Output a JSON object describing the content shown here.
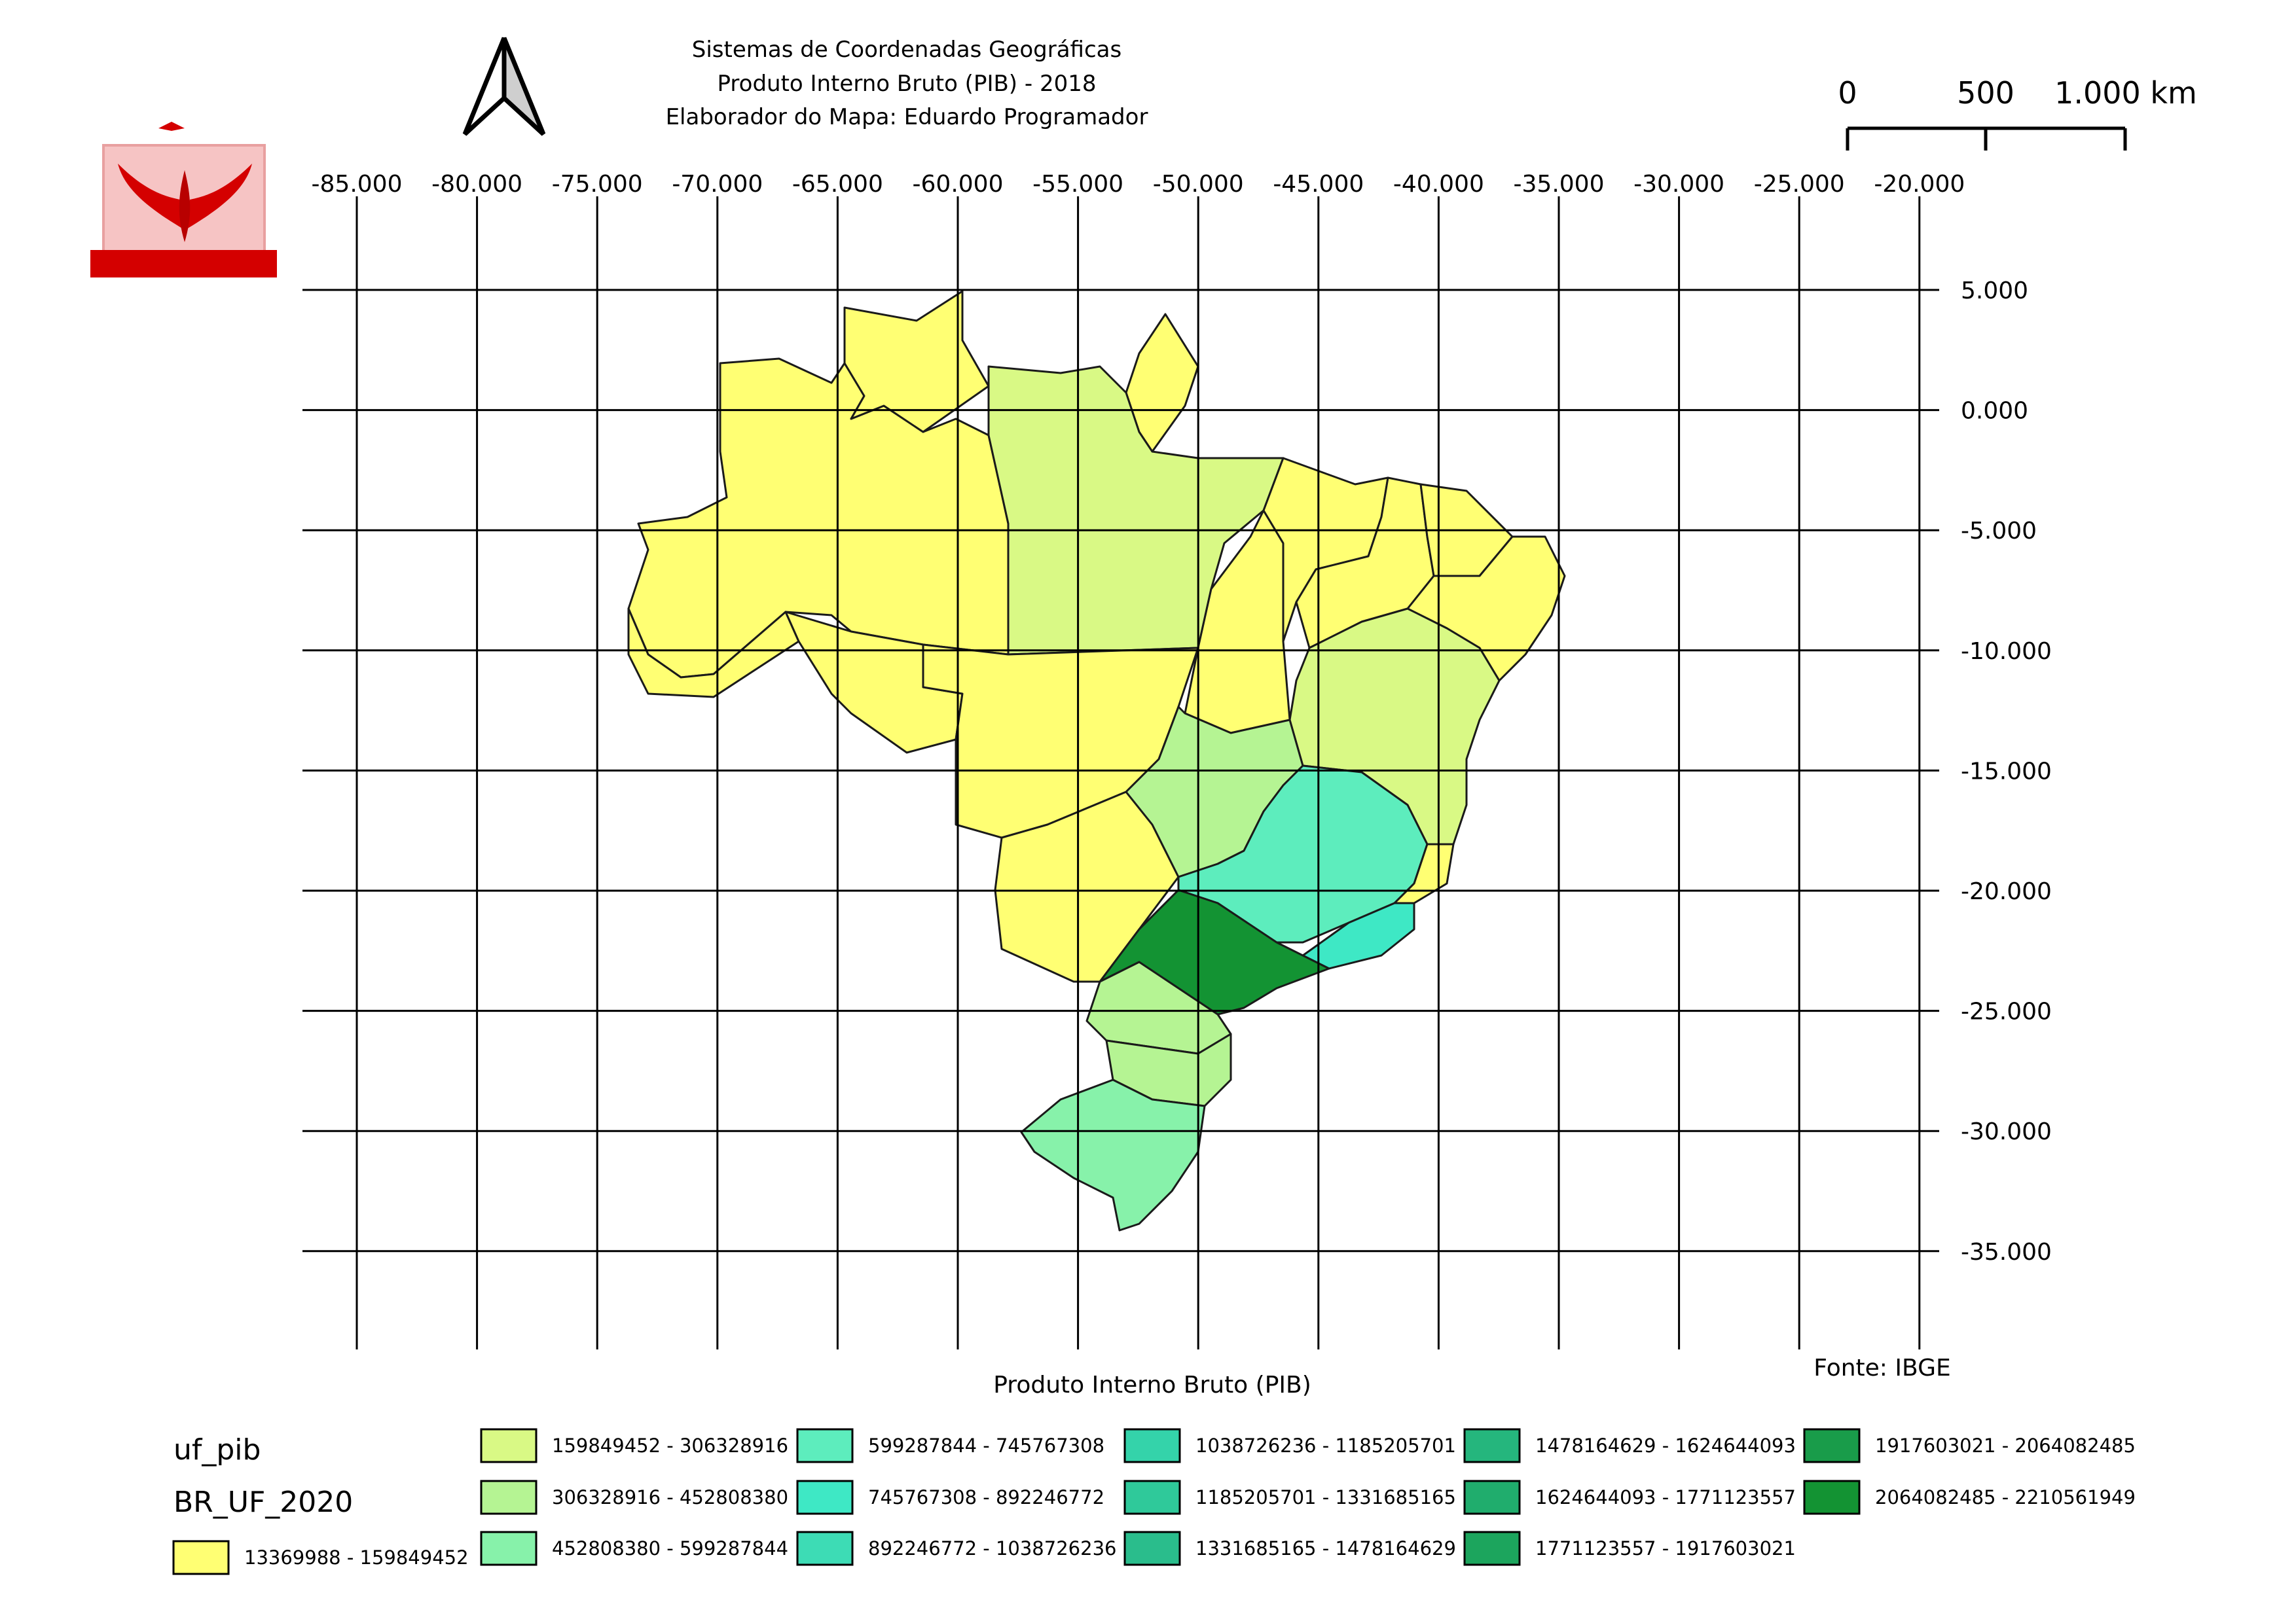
{
  "title": {
    "line1": "Sistemas de Coordenadas Geográficas",
    "line2": "Produto Interno Bruto (PIB) - 2018",
    "line3": "Elaborador do Mapa: Eduardo Programador"
  },
  "scale_bar": {
    "labels": [
      "0",
      "500",
      "1.000 km"
    ]
  },
  "grid": {
    "lon_labels": [
      "-85.000",
      "-80.000",
      "-75.000",
      "-70.000",
      "-65.000",
      "-60.000",
      "-55.000",
      "-50.000",
      "-45.000",
      "-40.000",
      "-35.000",
      "-30.000",
      "-25.000",
      "-20.000"
    ],
    "lat_labels": [
      "5.000",
      "0.000",
      "-5.000",
      "-10.000",
      "-15.000",
      "-20.000",
      "-25.000",
      "-30.000",
      "-35.000"
    ]
  },
  "caption": "Produto Interno Bruto (PIB)",
  "source": "Fonte: IBGE",
  "north_arrow": {
    "icon": "north-arrow-icon"
  },
  "logo": {
    "icon": "phoenix-logo-icon"
  },
  "legend": {
    "layer1": "uf_pib",
    "layer2": "BR_UF_2020",
    "base_class": {
      "label": "13369988 - 159849452",
      "color": "#ffff73"
    },
    "classes": [
      {
        "label": "159849452 - 306328916",
        "color": "#d9f985"
      },
      {
        "label": "306328916 - 452808380",
        "color": "#b5f493"
      },
      {
        "label": "452808380 - 599287844",
        "color": "#87f2aa"
      },
      {
        "label": "599287844 - 745767308",
        "color": "#5dedbd"
      },
      {
        "label": "745767308 - 892246772",
        "color": "#3ee8c5"
      },
      {
        "label": "892246772 - 1038726236",
        "color": "#3ddcb5"
      },
      {
        "label": "1038726236 - 1185205701",
        "color": "#34d3aa"
      },
      {
        "label": "1185205701 - 1331685165",
        "color": "#2fc99a"
      },
      {
        "label": "1331685165 - 1478164629",
        "color": "#2abd8c"
      },
      {
        "label": "1478164629 - 1624644093",
        "color": "#25b67d"
      },
      {
        "label": "1624644093 - 1771123557",
        "color": "#20ad6d"
      },
      {
        "label": "1771123557 - 1917603021",
        "color": "#1ca55d"
      },
      {
        "label": "1917603021 - 2064082485",
        "color": "#199c4a"
      },
      {
        "label": "2064082485 - 2210561949",
        "color": "#139333"
      }
    ]
  },
  "colors": {
    "yellow": "#ffff73",
    "light_green": "#d9f985",
    "green2": "#b5f493",
    "green3": "#87f2aa",
    "teal": "#5dedbd",
    "teal2": "#3ee8c5",
    "dark_green": "#139333",
    "logo_red": "#d40000"
  }
}
